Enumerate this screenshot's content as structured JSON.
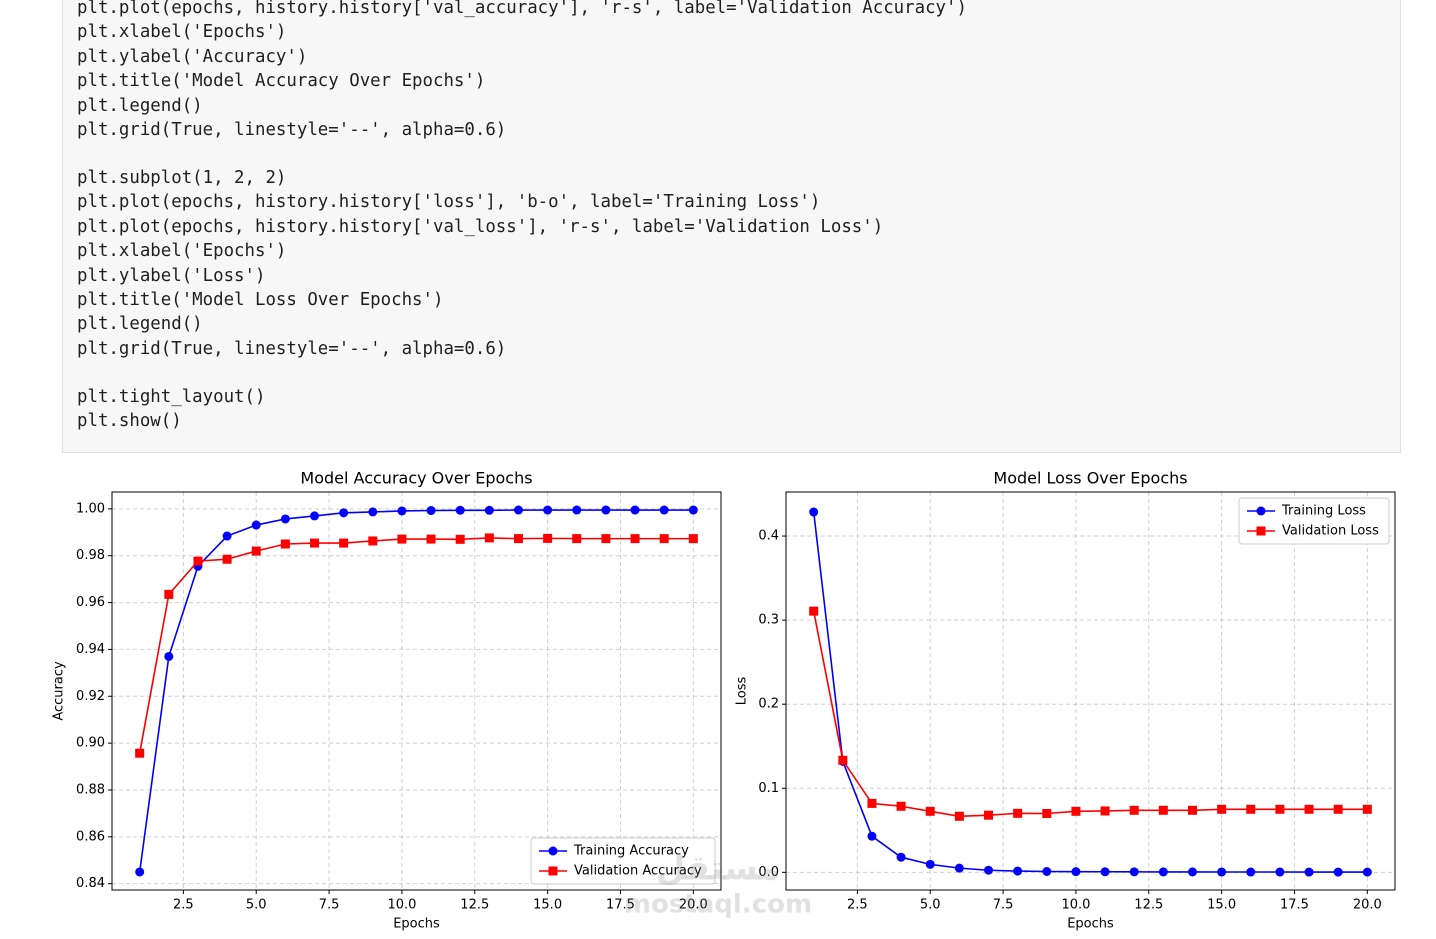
{
  "code": {
    "blocks": [
      [
        "plt.plot(epochs, history.history['val_accuracy'], 'r-s', label='Validation Accuracy')",
        "plt.xlabel('Epochs')",
        "plt.ylabel('Accuracy')",
        "plt.title('Model Accuracy Over Epochs')",
        "plt.legend()",
        "plt.grid(True, linestyle='--', alpha=0.6)"
      ],
      [
        "plt.subplot(1, 2, 2)",
        "plt.plot(epochs, history.history['loss'], 'b-o', label='Training Loss')",
        "plt.plot(epochs, history.history['val_loss'], 'r-s', label='Validation Loss')",
        "plt.xlabel('Epochs')",
        "plt.ylabel('Loss')",
        "plt.title('Model Loss Over Epochs')",
        "plt.legend()",
        "plt.grid(True, linestyle='--', alpha=0.6)"
      ],
      [
        "plt.tight_layout()",
        "plt.show()"
      ]
    ]
  },
  "watermark": {
    "arabic": "مستقل",
    "latin": "mostaql.com"
  },
  "chart_data": [
    {
      "type": "line",
      "title": "Model Accuracy Over Epochs",
      "x_label": "Epochs",
      "y_label": "Accuracy",
      "x": [
        1,
        2,
        3,
        4,
        5,
        6,
        7,
        8,
        9,
        10,
        11,
        12,
        13,
        14,
        15,
        16,
        17,
        18,
        19,
        20
      ],
      "series": [
        {
          "name": "Training Accuracy",
          "color": "#0000ff",
          "marker": "circle",
          "values": [
            0.845,
            0.937,
            0.9755,
            0.9884,
            0.9931,
            0.9957,
            0.997,
            0.9983,
            0.9987,
            0.9991,
            0.9993,
            0.9994,
            0.9994,
            0.9995,
            0.9995,
            0.9995,
            0.9995,
            0.9995,
            0.9995,
            0.9995
          ]
        },
        {
          "name": "Validation Accuracy",
          "color": "#ff0000",
          "marker": "square",
          "values": [
            0.8957,
            0.9635,
            0.9777,
            0.9785,
            0.982,
            0.985,
            0.9854,
            0.9854,
            0.9863,
            0.9871,
            0.9871,
            0.987,
            0.9876,
            0.9873,
            0.9874,
            0.9873,
            0.9873,
            0.9873,
            0.9873,
            0.9873
          ]
        }
      ],
      "xlim": [
        0.05,
        20.95
      ],
      "ylim": [
        0.8373,
        1.0072
      ],
      "xticks": [
        2.5,
        {
          "value": 5,
          "label": "5.0"
        },
        7.5,
        {
          "value": 10,
          "label": "10.0"
        },
        12.5,
        {
          "value": 15,
          "label": "15.0"
        },
        17.5,
        {
          "value": 20,
          "label": "20.0"
        }
      ],
      "yticks": [
        0.84,
        0.86,
        0.88,
        {
          "value": 0.9,
          "label": "0.90"
        },
        0.92,
        0.94,
        0.96,
        0.98,
        {
          "value": 1,
          "label": "1.00"
        }
      ],
      "grid": true,
      "legend": "lower right"
    },
    {
      "type": "line",
      "title": "Model Loss Over Epochs",
      "x_label": "Epochs",
      "y_label": "Loss",
      "x": [
        1,
        2,
        3,
        4,
        5,
        6,
        7,
        8,
        9,
        10,
        11,
        12,
        13,
        14,
        15,
        16,
        17,
        18,
        19,
        20
      ],
      "series": [
        {
          "name": "Training Loss",
          "color": "#0000ff",
          "marker": "circle",
          "values": [
            0.4286,
            0.132,
            0.043,
            0.018,
            0.0095,
            0.005,
            0.0025,
            0.0015,
            0.001,
            0.0008,
            0.0007,
            0.0006,
            0.0005,
            0.0005,
            0.0004,
            0.0004,
            0.0004,
            0.0003,
            0.0003,
            0.0003
          ]
        },
        {
          "name": "Validation Loss",
          "color": "#ff0000",
          "marker": "square",
          "values": [
            0.3107,
            0.1333,
            0.082,
            0.0786,
            0.0726,
            0.0667,
            0.068,
            0.0702,
            0.07,
            0.0726,
            0.073,
            0.0738,
            0.0738,
            0.0738,
            0.075,
            0.075,
            0.075,
            0.075,
            0.075,
            0.075
          ]
        }
      ],
      "xlim": [
        0.05,
        20.95
      ],
      "ylim": [
        -0.021,
        0.4524
      ],
      "xticks": [
        2.5,
        {
          "value": 5,
          "label": "5.0"
        },
        7.5,
        {
          "value": 10,
          "label": "10.0"
        },
        12.5,
        {
          "value": 15,
          "label": "15.0"
        },
        17.5,
        {
          "value": 20,
          "label": "20.0"
        }
      ],
      "yticks": [
        {
          "value": 0,
          "label": "0.0"
        },
        0.1,
        0.2,
        0.3,
        0.4
      ],
      "grid": true,
      "legend": "upper right"
    }
  ]
}
